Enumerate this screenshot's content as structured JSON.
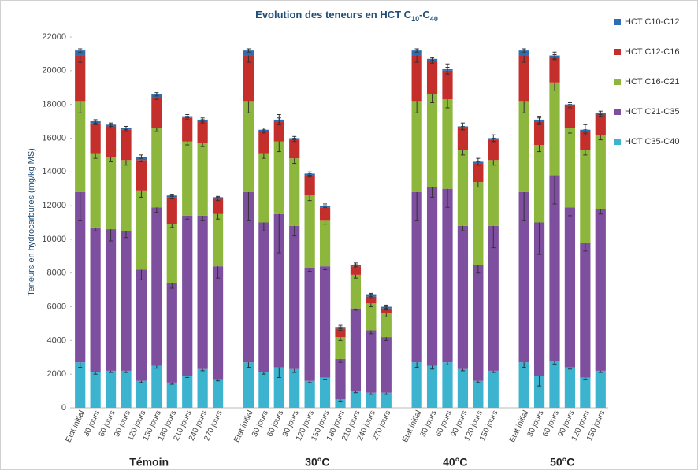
{
  "chart_data": {
    "type": "stacked_bar",
    "title": [
      "Evolution des teneurs en HCT C",
      "10",
      "-C",
      "40"
    ],
    "title_subscript": [
      false,
      true,
      false,
      true
    ],
    "y_label": "Teneurs en hydrocarbures (mg/kg MS)",
    "ylim": [
      0,
      22000
    ],
    "yticks": [
      0,
      2000,
      4000,
      6000,
      8000,
      10000,
      12000,
      14000,
      16000,
      18000,
      20000,
      22000
    ],
    "grid": false,
    "legend": "right",
    "groups": [
      {
        "label": "Témoin",
        "categories": [
          "Etat initial",
          "30 jours",
          "60 jours",
          "90 jours",
          "120 jours",
          "150 jours",
          "180 jours",
          "210 jours",
          "240 jours",
          "270 jours"
        ]
      },
      {
        "label": "30°C",
        "categories": [
          "Etat initial",
          "30 jours",
          "60 jours",
          "90 jours",
          "120 jours",
          "150 jours",
          "180 jours",
          "210 jours",
          "240 jours",
          "270 jours"
        ]
      },
      {
        "label": "40°C",
        "categories": [
          "Etat initial",
          "30 jours",
          "60 jours",
          "90 jours",
          "120 jours",
          "150 jours"
        ]
      },
      {
        "label": "50°C",
        "categories": [
          "Etat initial",
          "30 jours",
          "60 jours",
          "90 jours",
          "120 jours",
          "150 jours"
        ]
      }
    ],
    "series": [
      {
        "name": "HCT C35-C40",
        "color": "#3db4cf",
        "values": [
          2700,
          2100,
          2200,
          2200,
          1600,
          2500,
          1500,
          1900,
          2300,
          1700,
          2700,
          2100,
          2400,
          2300,
          1600,
          1800,
          500,
          1000,
          900,
          900,
          2700,
          2500,
          2700,
          2300,
          1600,
          2200,
          2700,
          1900,
          2800,
          2400,
          1800,
          2200
        ],
        "errors": [
          300,
          100,
          100,
          100,
          100,
          150,
          100,
          100,
          100,
          100,
          300,
          100,
          600,
          200,
          100,
          100,
          100,
          100,
          100,
          100,
          300,
          200,
          150,
          100,
          100,
          100,
          300,
          600,
          200,
          100,
          100,
          100
        ]
      },
      {
        "name": "HCT C21-C35",
        "color": "#7d4f9e",
        "values": [
          10100,
          8600,
          8400,
          8300,
          6600,
          9400,
          5900,
          9500,
          9100,
          6700,
          10100,
          8900,
          9100,
          8500,
          6700,
          6600,
          2400,
          4900,
          3700,
          3300,
          10100,
          10600,
          10300,
          8500,
          6900,
          8600,
          10100,
          9100,
          11000,
          9500,
          8000,
          9600
        ],
        "errors": [
          1700,
          200,
          700,
          400,
          600,
          300,
          300,
          200,
          300,
          700,
          1700,
          500,
          2300,
          600,
          200,
          200,
          200,
          100,
          200,
          200,
          1700,
          600,
          1100,
          300,
          500,
          1300,
          1700,
          1900,
          1700,
          500,
          500,
          300
        ]
      },
      {
        "name": "HCT C16-C21",
        "color": "#8cb63c",
        "values": [
          5400,
          4400,
          4300,
          4200,
          4700,
          4700,
          3500,
          4400,
          4300,
          3100,
          5400,
          4100,
          4300,
          4000,
          4300,
          2700,
          1300,
          2000,
          1600,
          1400,
          5400,
          5500,
          5300,
          4500,
          4900,
          3900,
          5400,
          4600,
          5500,
          4700,
          5500,
          4400
        ],
        "errors": [
          700,
          300,
          300,
          300,
          400,
          200,
          200,
          200,
          200,
          300,
          700,
          300,
          600,
          300,
          300,
          200,
          200,
          200,
          200,
          200,
          700,
          500,
          500,
          300,
          300,
          300,
          700,
          400,
          500,
          300,
          300,
          300
        ]
      },
      {
        "name": "HCT C12-C16",
        "color": "#c42f2c",
        "values": [
          2700,
          1800,
          1800,
          1800,
          1800,
          1800,
          1600,
          1400,
          1300,
          900,
          2700,
          1300,
          1200,
          1100,
          1200,
          800,
          500,
          500,
          400,
          300,
          2700,
          2000,
          1700,
          1300,
          1100,
          1200,
          2700,
          1400,
          1500,
          1300,
          1100,
          1200
        ],
        "errors": [
          400,
          100,
          100,
          100,
          100,
          100,
          100,
          100,
          100,
          100,
          400,
          100,
          200,
          100,
          100,
          100,
          100,
          100,
          100,
          100,
          400,
          150,
          200,
          100,
          100,
          100,
          400,
          200,
          150,
          100,
          100,
          100
        ]
      },
      {
        "name": "HCT C10-C12",
        "color": "#2f6db3",
        "values": [
          300,
          100,
          100,
          100,
          200,
          200,
          100,
          100,
          100,
          100,
          300,
          100,
          100,
          100,
          100,
          100,
          100,
          100,
          100,
          100,
          300,
          100,
          100,
          100,
          100,
          100,
          300,
          100,
          100,
          100,
          100,
          100
        ],
        "errors": [
          100,
          100,
          100,
          100,
          100,
          100,
          50,
          100,
          100,
          50,
          100,
          100,
          300,
          100,
          100,
          100,
          100,
          100,
          100,
          100,
          100,
          100,
          300,
          200,
          200,
          200,
          100,
          200,
          200,
          100,
          300,
          100
        ]
      }
    ]
  }
}
